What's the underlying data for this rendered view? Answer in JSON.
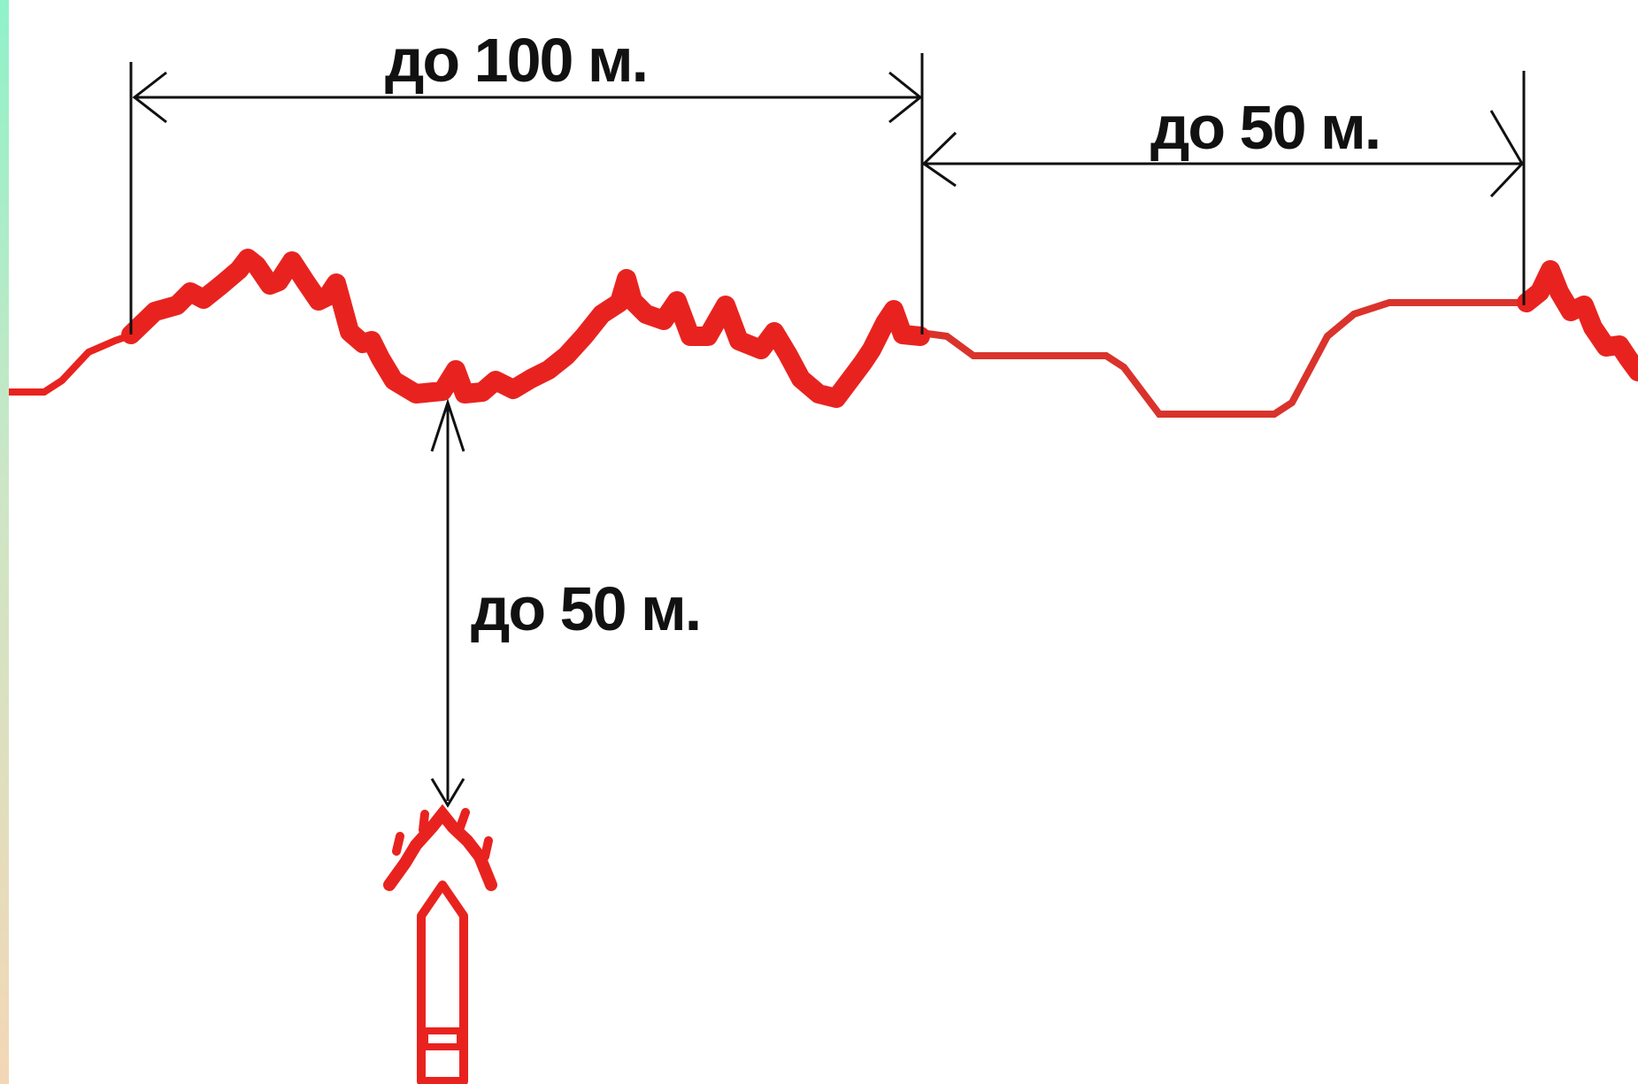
{
  "labels": {
    "front_width": "до 100 м.",
    "gap_width": "до 50 м.",
    "depth": "до 50 м."
  },
  "colors": {
    "trench": "#e8231f",
    "trench_thin": "#d9332c",
    "dimension_line": "#111111",
    "background": "#ffffff",
    "left_strip_top": "#8ff2c9",
    "left_strip_bottom": "#f3d7b6"
  },
  "icons": {
    "unit_symbol": "squad-position-arrow-icon"
  }
}
